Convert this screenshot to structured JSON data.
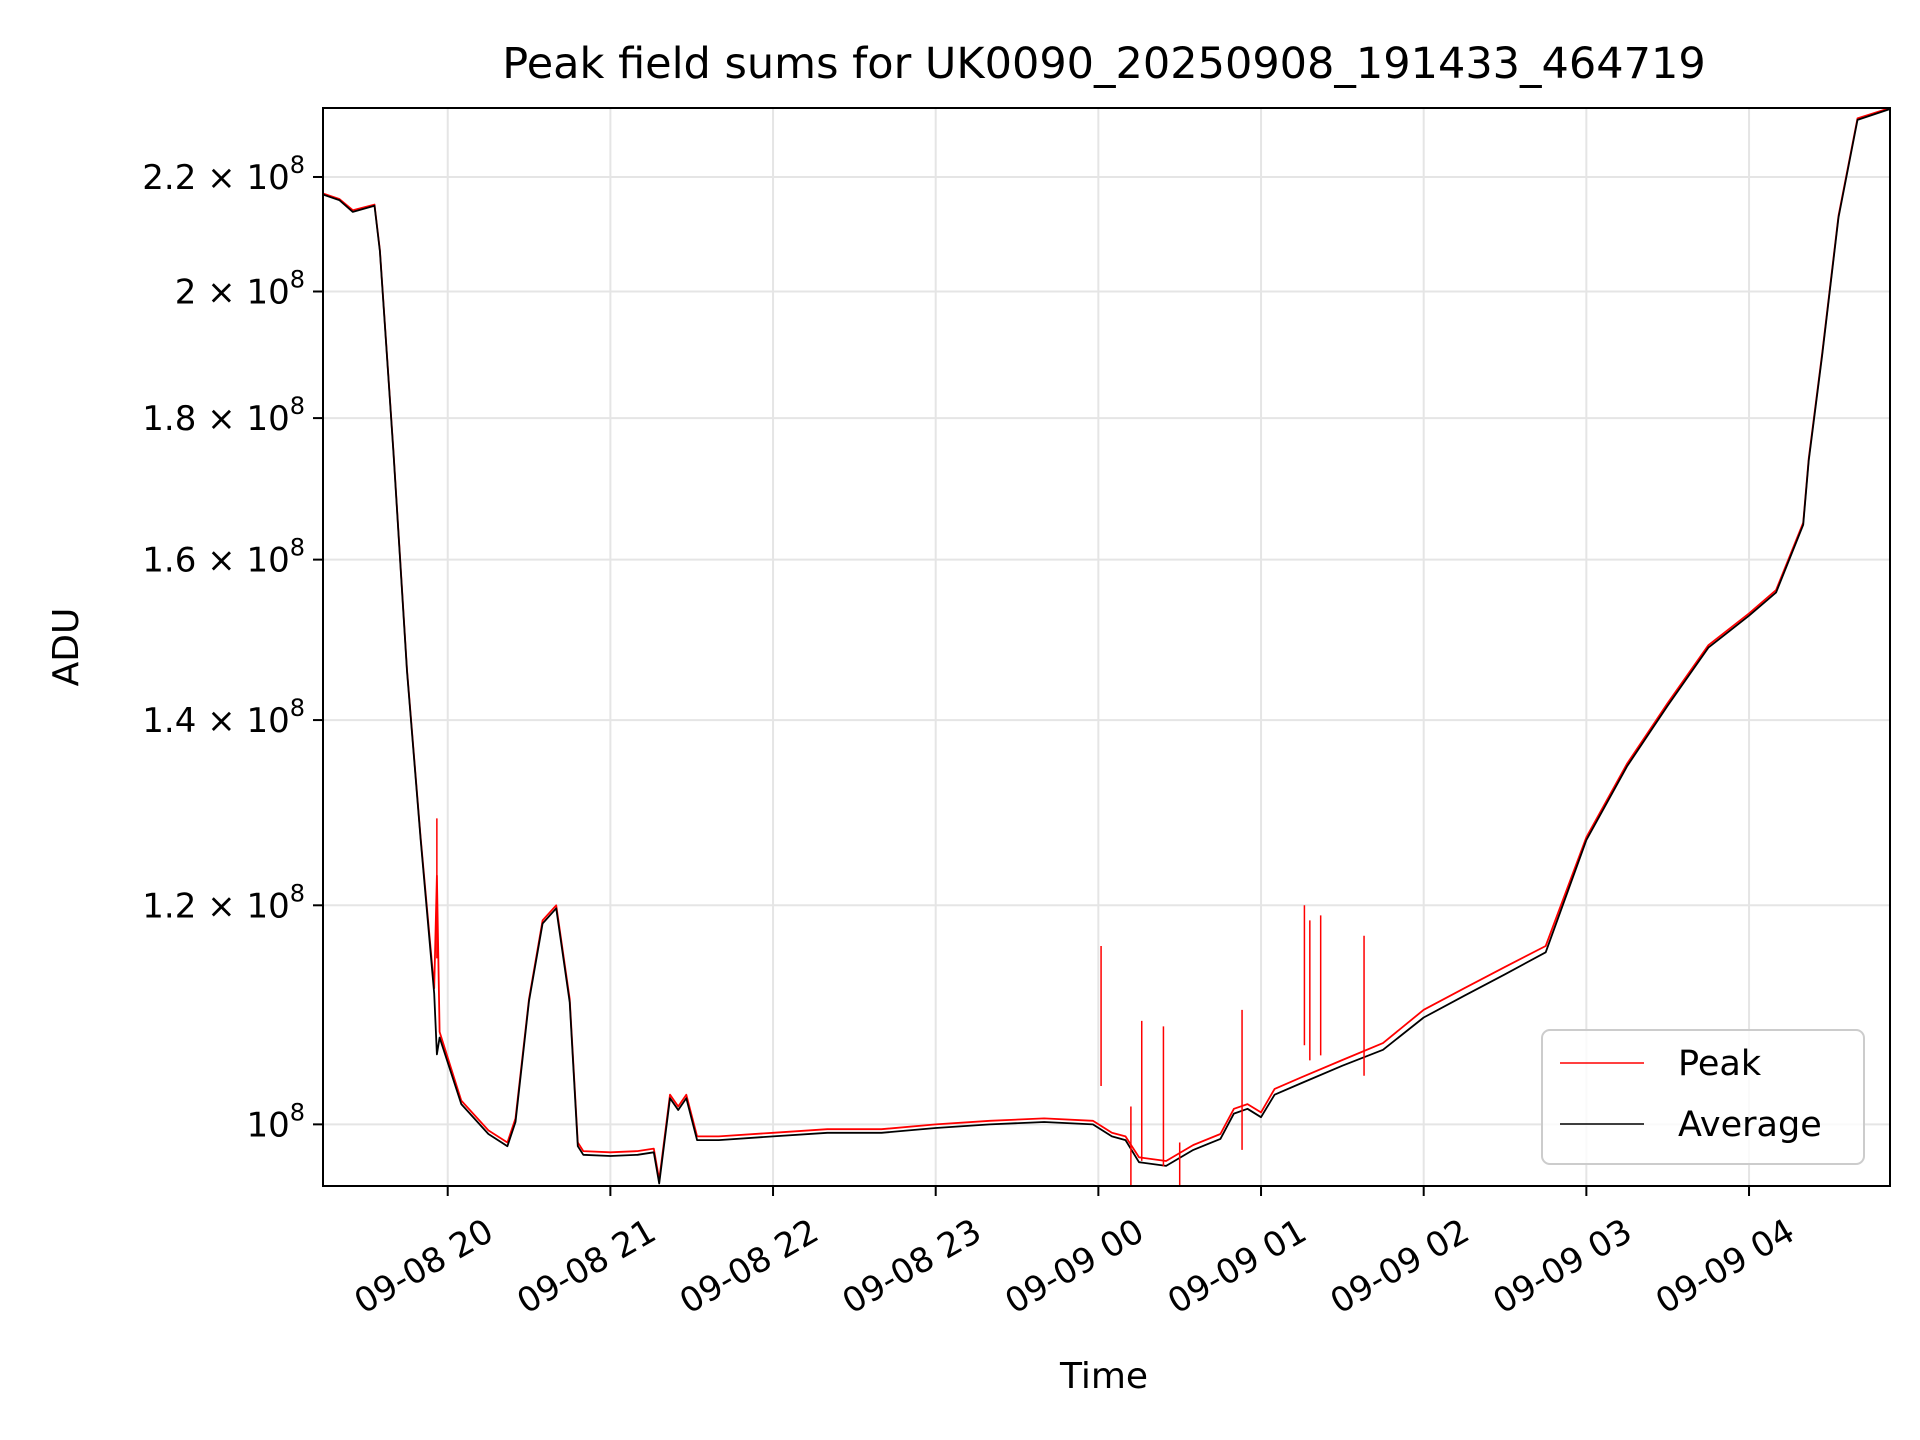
{
  "chart_data": {
    "type": "line",
    "title": "Peak field sums for UK0090_20250908_191433_464719",
    "xlabel": "Time",
    "ylabel": "ADU",
    "y_scale": "log",
    "grid": true,
    "legend_position": "bottom-right",
    "xlim": [
      "2025-09-08 19:14",
      "2025-09-09 04:52"
    ],
    "ylim": [
      95000000,
      233000000
    ],
    "x_ticks": [
      {
        "value": "2025-09-08 20:00",
        "label": "09-08 20"
      },
      {
        "value": "2025-09-08 21:00",
        "label": "09-08 21"
      },
      {
        "value": "2025-09-08 22:00",
        "label": "09-08 22"
      },
      {
        "value": "2025-09-08 23:00",
        "label": "09-08 23"
      },
      {
        "value": "2025-09-09 00:00",
        "label": "09-09 00"
      },
      {
        "value": "2025-09-09 01:00",
        "label": "09-09 01"
      },
      {
        "value": "2025-09-09 02:00",
        "label": "09-09 02"
      },
      {
        "value": "2025-09-09 03:00",
        "label": "09-09 03"
      },
      {
        "value": "2025-09-09 04:00",
        "label": "09-09 04"
      }
    ],
    "y_ticks": [
      {
        "value": 100000000,
        "mantissa": "",
        "exponent": "8"
      },
      {
        "value": 120000000,
        "mantissa": "1.2",
        "exponent": "8"
      },
      {
        "value": 140000000,
        "mantissa": "1.4",
        "exponent": "8"
      },
      {
        "value": 160000000,
        "mantissa": "1.6",
        "exponent": "8"
      },
      {
        "value": 180000000,
        "mantissa": "1.8",
        "exponent": "8"
      },
      {
        "value": 200000000,
        "mantissa": "2",
        "exponent": "8"
      },
      {
        "value": 220000000,
        "mantissa": "2.2",
        "exponent": "8"
      }
    ],
    "tick_times_label": "× 10",
    "tick_base": "10",
    "series": [
      {
        "name": "Peak",
        "color": "#ff0000",
        "points": [
          [
            "2025-09-08 19:14",
            217000000
          ],
          [
            "2025-09-08 19:20",
            216000000
          ],
          [
            "2025-09-08 19:25",
            214000000
          ],
          [
            "2025-09-08 19:33",
            215000000
          ],
          [
            "2025-09-08 19:35",
            207000000
          ],
          [
            "2025-09-08 19:40",
            175000000
          ],
          [
            "2025-09-08 19:45",
            146000000
          ],
          [
            "2025-09-08 19:50",
            127000000
          ],
          [
            "2025-09-08 19:55",
            112000000
          ],
          [
            "2025-09-08 19:56",
            123000000
          ],
          [
            "2025-09-08 19:57",
            108000000
          ],
          [
            "2025-09-08 20:05",
            102000000
          ],
          [
            "2025-09-08 20:15",
            99500000
          ],
          [
            "2025-09-08 20:22",
            98500000
          ],
          [
            "2025-09-08 20:25",
            100500000
          ],
          [
            "2025-09-08 20:30",
            111000000
          ],
          [
            "2025-09-08 20:35",
            118500000
          ],
          [
            "2025-09-08 20:40",
            120000000
          ],
          [
            "2025-09-08 20:45",
            111000000
          ],
          [
            "2025-09-08 20:48",
            98500000
          ],
          [
            "2025-09-08 20:50",
            97800000
          ],
          [
            "2025-09-08 21:00",
            97700000
          ],
          [
            "2025-09-08 21:10",
            97800000
          ],
          [
            "2025-09-08 21:16",
            98000000
          ],
          [
            "2025-09-08 21:18",
            95500000
          ],
          [
            "2025-09-08 21:22",
            102500000
          ],
          [
            "2025-09-08 21:25",
            101500000
          ],
          [
            "2025-09-08 21:28",
            102500000
          ],
          [
            "2025-09-08 21:32",
            99000000
          ],
          [
            "2025-09-08 21:40",
            99000000
          ],
          [
            "2025-09-08 22:00",
            99300000
          ],
          [
            "2025-09-08 22:20",
            99600000
          ],
          [
            "2025-09-08 22:40",
            99600000
          ],
          [
            "2025-09-08 23:00",
            100000000
          ],
          [
            "2025-09-08 23:20",
            100300000
          ],
          [
            "2025-09-08 23:40",
            100500000
          ],
          [
            "2025-09-08 23:58",
            100300000
          ],
          [
            "2025-09-09 00:05",
            99300000
          ],
          [
            "2025-09-09 00:10",
            99000000
          ],
          [
            "2025-09-09 00:15",
            97300000
          ],
          [
            "2025-09-09 00:25",
            97000000
          ],
          [
            "2025-09-09 00:35",
            98300000
          ],
          [
            "2025-09-09 00:45",
            99200000
          ],
          [
            "2025-09-09 00:50",
            101300000
          ],
          [
            "2025-09-09 00:55",
            101700000
          ],
          [
            "2025-09-09 01:00",
            101000000
          ],
          [
            "2025-09-09 01:05",
            103000000
          ],
          [
            "2025-09-09 01:15",
            104000000
          ],
          [
            "2025-09-09 01:30",
            105500000
          ],
          [
            "2025-09-09 01:45",
            107000000
          ],
          [
            "2025-09-09 02:00",
            110000000
          ],
          [
            "2025-09-09 02:15",
            112000000
          ],
          [
            "2025-09-09 02:30",
            114000000
          ],
          [
            "2025-09-09 02:45",
            116000000
          ],
          [
            "2025-09-09 03:00",
            127000000
          ],
          [
            "2025-09-09 03:15",
            135000000
          ],
          [
            "2025-09-09 03:30",
            142000000
          ],
          [
            "2025-09-09 03:45",
            149000000
          ],
          [
            "2025-09-09 04:00",
            153000000
          ],
          [
            "2025-09-09 04:10",
            156000000
          ],
          [
            "2025-09-09 04:20",
            165000000
          ],
          [
            "2025-09-09 04:22",
            174000000
          ],
          [
            "2025-09-09 04:27",
            190000000
          ],
          [
            "2025-09-09 04:33",
            213000000
          ],
          [
            "2025-09-09 04:40",
            231000000
          ],
          [
            "2025-09-09 04:52",
            233000000
          ]
        ]
      },
      {
        "name": "Average",
        "color": "#000000",
        "points": [
          [
            "2025-09-08 19:14",
            216800000
          ],
          [
            "2025-09-08 19:20",
            215800000
          ],
          [
            "2025-09-08 19:25",
            213700000
          ],
          [
            "2025-09-08 19:33",
            214800000
          ],
          [
            "2025-09-08 19:35",
            206800000
          ],
          [
            "2025-09-08 19:40",
            174800000
          ],
          [
            "2025-09-08 19:45",
            145800000
          ],
          [
            "2025-09-08 19:50",
            126800000
          ],
          [
            "2025-09-08 19:55",
            111500000
          ],
          [
            "2025-09-08 19:56",
            106000000
          ],
          [
            "2025-09-08 19:57",
            107500000
          ],
          [
            "2025-09-08 20:05",
            101700000
          ],
          [
            "2025-09-08 20:15",
            99200000
          ],
          [
            "2025-09-08 20:22",
            98200000
          ],
          [
            "2025-09-08 20:25",
            100200000
          ],
          [
            "2025-09-08 20:30",
            110800000
          ],
          [
            "2025-09-08 20:35",
            118200000
          ],
          [
            "2025-09-08 20:40",
            119700000
          ],
          [
            "2025-09-08 20:45",
            110700000
          ],
          [
            "2025-09-08 20:48",
            98200000
          ],
          [
            "2025-09-08 20:50",
            97500000
          ],
          [
            "2025-09-08 21:00",
            97400000
          ],
          [
            "2025-09-08 21:10",
            97500000
          ],
          [
            "2025-09-08 21:16",
            97700000
          ],
          [
            "2025-09-08 21:18",
            95200000
          ],
          [
            "2025-09-08 21:22",
            102200000
          ],
          [
            "2025-09-08 21:25",
            101200000
          ],
          [
            "2025-09-08 21:28",
            102200000
          ],
          [
            "2025-09-08 21:32",
            98700000
          ],
          [
            "2025-09-08 21:40",
            98700000
          ],
          [
            "2025-09-08 22:00",
            99000000
          ],
          [
            "2025-09-08 22:20",
            99300000
          ],
          [
            "2025-09-08 22:40",
            99300000
          ],
          [
            "2025-09-08 23:00",
            99700000
          ],
          [
            "2025-09-08 23:20",
            100000000
          ],
          [
            "2025-09-08 23:40",
            100200000
          ],
          [
            "2025-09-08 23:58",
            100000000
          ],
          [
            "2025-09-09 00:05",
            99000000
          ],
          [
            "2025-09-09 00:10",
            98700000
          ],
          [
            "2025-09-09 00:15",
            96900000
          ],
          [
            "2025-09-09 00:25",
            96600000
          ],
          [
            "2025-09-09 00:35",
            97900000
          ],
          [
            "2025-09-09 00:45",
            98800000
          ],
          [
            "2025-09-09 00:50",
            100900000
          ],
          [
            "2025-09-09 00:55",
            101300000
          ],
          [
            "2025-09-09 01:00",
            100600000
          ],
          [
            "2025-09-09 01:05",
            102500000
          ],
          [
            "2025-09-09 01:15",
            103500000
          ],
          [
            "2025-09-09 01:30",
            105000000
          ],
          [
            "2025-09-09 01:45",
            106400000
          ],
          [
            "2025-09-09 02:00",
            109300000
          ],
          [
            "2025-09-09 02:15",
            111300000
          ],
          [
            "2025-09-09 02:30",
            113300000
          ],
          [
            "2025-09-09 02:45",
            115400000
          ],
          [
            "2025-09-09 03:00",
            126700000
          ],
          [
            "2025-09-09 03:15",
            134700000
          ],
          [
            "2025-09-09 03:30",
            141700000
          ],
          [
            "2025-09-09 03:45",
            148700000
          ],
          [
            "2025-09-09 04:00",
            152700000
          ],
          [
            "2025-09-09 04:10",
            155700000
          ],
          [
            "2025-09-09 04:20",
            164700000
          ],
          [
            "2025-09-09 04:22",
            173700000
          ],
          [
            "2025-09-09 04:27",
            189700000
          ],
          [
            "2025-09-09 04:33",
            212700000
          ],
          [
            "2025-09-09 04:40",
            230700000
          ],
          [
            "2025-09-09 04:52",
            232800000
          ]
        ]
      }
    ],
    "peak_spikes": [
      [
        "2025-09-08 19:56",
        129000000
      ],
      [
        "2025-09-09 00:01",
        116000000
      ],
      [
        "2025-09-09 00:12",
        101500000
      ],
      [
        "2025-09-09 00:16",
        109000000
      ],
      [
        "2025-09-09 00:24",
        108500000
      ],
      [
        "2025-09-09 00:30",
        98500000
      ],
      [
        "2025-09-09 00:53",
        110000000
      ],
      [
        "2025-09-09 01:16",
        120000000
      ],
      [
        "2025-09-09 01:18",
        118500000
      ],
      [
        "2025-09-09 01:22",
        119000000
      ],
      [
        "2025-09-09 01:38",
        117000000
      ]
    ]
  }
}
